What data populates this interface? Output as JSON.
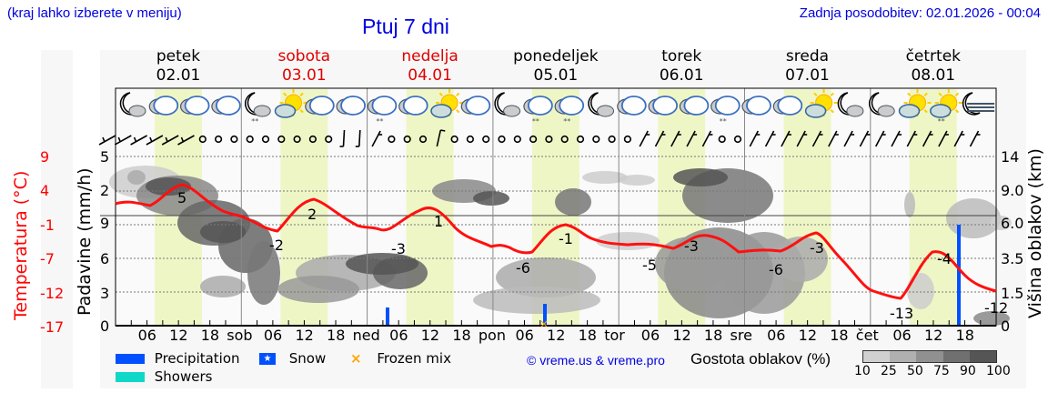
{
  "header": {
    "location_hint": "(kraj lahko izberete v meniju)",
    "title": "Ptuj 7 dni",
    "last_update": "Zadnja posodobitev: 02.01.2026 - 00:04"
  },
  "days": [
    {
      "name": "petek",
      "date": "02.01",
      "weekend": false
    },
    {
      "name": "sobota",
      "date": "03.01",
      "weekend": true
    },
    {
      "name": "nedelja",
      "date": "04.01",
      "weekend": true
    },
    {
      "name": "ponedeljek",
      "date": "05.01",
      "weekend": false
    },
    {
      "name": "torek",
      "date": "06.01",
      "weekend": false
    },
    {
      "name": "sreda",
      "date": "07.01",
      "weekend": false
    },
    {
      "name": "četrtek",
      "date": "08.01",
      "weekend": false
    }
  ],
  "axes": {
    "temp_title": "Temperatura (°C)",
    "temp_ticks": [
      "9",
      "4",
      "-1",
      "-7",
      "-12",
      "-17"
    ],
    "precip_title": "Padavine (mm/h)",
    "precip_ticks": [
      "5",
      "2",
      "9",
      "6",
      "3",
      "0"
    ],
    "cloud_title": "Višina oblakov (km)",
    "cloud_ticks": [
      "14",
      "9.0",
      "6.0",
      "3.5",
      "1.5",
      "0"
    ],
    "x_ticks": [
      "06",
      "12",
      "18",
      "sob",
      "06",
      "12",
      "18",
      "ned",
      "06",
      "12",
      "18",
      "pon",
      "06",
      "12",
      "18",
      "tor",
      "06",
      "12",
      "18",
      "sre",
      "06",
      "12",
      "18",
      "čet",
      "06",
      "12",
      "18"
    ]
  },
  "weather_icons": [
    "moon-cloud",
    "cloud",
    "cloud",
    "cloud",
    "moon-cloud-snow",
    "sun-cloud",
    "cloud",
    "cloud",
    "cloud-snow",
    "cloud",
    "sun-cloud",
    "cloud",
    "moon-cloud",
    "cloud-snow",
    "cloud-snow",
    "moon-cloud",
    "cloud",
    "cloud",
    "cloud",
    "cloud-snow",
    "cloud",
    "cloud",
    "sun-cloud",
    "moon-cloud",
    "moon-cloud",
    "sun-cloud",
    "sun-cloud-snow",
    "moon-fog"
  ],
  "legend": {
    "precipitation": "Precipitation",
    "showers": "Showers",
    "snow": "Snow",
    "frozen_mix": "Frozen mix",
    "copyright": "© vreme.us & vreme.pro",
    "cloud_density_title": "Gostota oblakov (%)",
    "cloud_density_ticks": [
      "10",
      "25",
      "50",
      "75",
      "90",
      "100"
    ]
  },
  "colors": {
    "title_blue": "#0000e0",
    "temperature": "#ff0000",
    "precipitation": "#0050ff",
    "showers": "#10d8c8",
    "frozen_mix": "#ffa500",
    "daylight": "#f0f8c8"
  },
  "chart_data": {
    "type": "line",
    "title": "Ptuj 7 dni",
    "xlabel": "",
    "ylabel": "Temperatura (°C)",
    "ylim": [
      -17,
      12
    ],
    "grid": true,
    "x": [
      "Pet 00",
      "Pet 12",
      "Sob 00",
      "Sob 06",
      "Sob 12",
      "Ned 00",
      "Ned 12",
      "Pon 00",
      "Pon 06",
      "Pon 12",
      "Tor 00",
      "Tor 12",
      "Sre 00",
      "Sre 12",
      "Čet 00",
      "Čet 06",
      "Čet 15",
      "Čet 24"
    ],
    "series": [
      {
        "name": "Temperatura",
        "values": [
          1,
          5,
          0,
          -2,
          2,
          -1,
          1,
          -4,
          -6,
          -1,
          -4,
          -3,
          -6,
          -3,
          -11,
          -13,
          -4,
          -12
        ]
      }
    ],
    "annotations": [
      {
        "label": "5",
        "day": "petek"
      },
      {
        "label": "-2",
        "day": "petek"
      },
      {
        "label": "2",
        "day": "sobota"
      },
      {
        "label": "-3",
        "day": "sobota"
      },
      {
        "label": "1",
        "day": "nedelja"
      },
      {
        "label": "-6",
        "day": "ponedeljek"
      },
      {
        "label": "-1",
        "day": "ponedeljek"
      },
      {
        "label": "-5",
        "day": "torek"
      },
      {
        "label": "-3",
        "day": "torek"
      },
      {
        "label": "-6",
        "day": "sreda"
      },
      {
        "label": "-3",
        "day": "sreda"
      },
      {
        "label": "-13",
        "day": "četrtek"
      },
      {
        "label": "-4",
        "day": "četrtek"
      },
      {
        "label": "-12",
        "day": "četrtek"
      }
    ],
    "precipitation_bars": [
      {
        "time": "ned 05",
        "type": "precipitation"
      },
      {
        "time": "pon 10",
        "type": "frozen_mix"
      },
      {
        "time": "čet 17",
        "type": "precipitation"
      }
    ],
    "cloud_density_legend": [
      10,
      25,
      50,
      75,
      90,
      100
    ]
  }
}
